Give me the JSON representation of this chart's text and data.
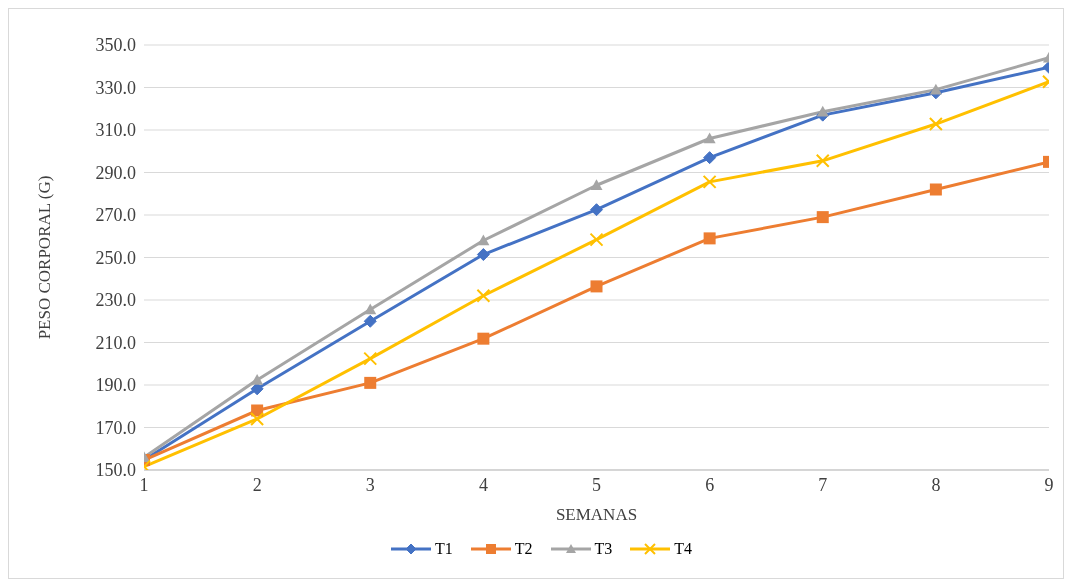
{
  "chart_data": {
    "type": "line",
    "xlabel": "SEMANAS",
    "ylabel": "PESO CORPORAL (G)",
    "x": [
      1,
      2,
      3,
      4,
      5,
      6,
      7,
      8,
      9
    ],
    "xlim": [
      1,
      9
    ],
    "xticks": [
      1,
      2,
      3,
      4,
      5,
      6,
      7,
      8,
      9
    ],
    "ylim": [
      150,
      350
    ],
    "yticks": [
      {
        "value": 150,
        "label": "150.0"
      },
      {
        "value": 170,
        "label": "170.0"
      },
      {
        "value": 190,
        "label": "190.0"
      },
      {
        "value": 210,
        "label": "210.0"
      },
      {
        "value": 230,
        "label": "230.0"
      },
      {
        "value": 250,
        "label": "250.0"
      },
      {
        "value": 270,
        "label": "270.0"
      },
      {
        "value": 290,
        "label": "290.0"
      },
      {
        "value": 310,
        "label": "310.0"
      },
      {
        "value": 330,
        "label": "330.0"
      },
      {
        "value": 350,
        "label": "350.0"
      }
    ],
    "grid": "y",
    "legend": "bottom",
    "series": [
      {
        "name": "T1",
        "color": "#4472c4",
        "marker": "diamond",
        "values": [
          154.7,
          188.2,
          220,
          251.4,
          272.5,
          297,
          317,
          327.5,
          339.5
        ]
      },
      {
        "name": "T2",
        "color": "#ed7d31",
        "marker": "square",
        "values": [
          154.7,
          178,
          191,
          211.8,
          236.4,
          259,
          269,
          282,
          295
        ]
      },
      {
        "name": "T3",
        "color": "#a5a5a5",
        "marker": "triangle",
        "values": [
          156,
          192.4,
          225.5,
          258,
          284,
          306,
          318.6,
          329,
          344
        ]
      },
      {
        "name": "T4",
        "color": "#ffc000",
        "marker": "cross",
        "values": [
          151.6,
          174,
          202.4,
          232,
          258.4,
          285.6,
          295.5,
          312.8,
          332.7
        ]
      }
    ]
  }
}
